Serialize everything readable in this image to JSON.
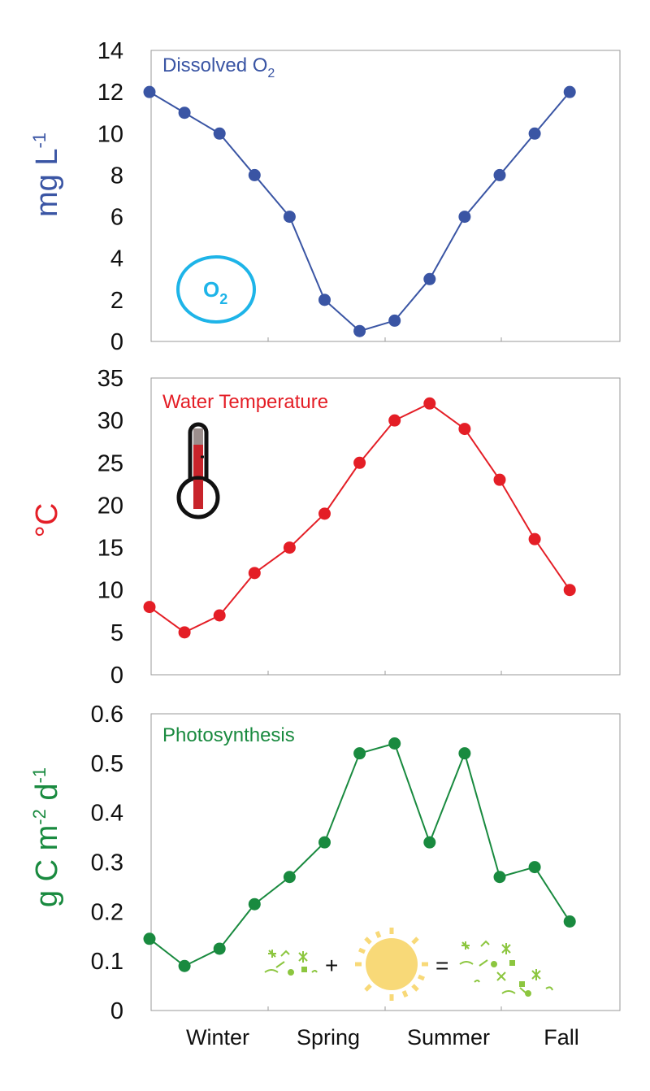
{
  "colors": {
    "oxygen": "#3a55a4",
    "temperature": "#e41e26",
    "photosynthesis": "#198a3f",
    "o2_icon": "#1eb4e8",
    "sun": "#f8d978",
    "algae": "#8cc63f"
  },
  "icons": [
    "o2-bubble-icon",
    "thermometer-icon",
    "algae-icon",
    "sun-icon"
  ],
  "o2_icon": {
    "base": "O",
    "sub": "2"
  },
  "equation": {
    "plus": "+",
    "equals": "="
  },
  "chart_data": [
    {
      "type": "line",
      "title": "Dissolved O",
      "title_sub": "2",
      "ylabel": "mg L",
      "ylabel_sup": "-1",
      "ylim": [
        0,
        14
      ],
      "yticks": [
        0,
        2,
        4,
        6,
        8,
        10,
        12,
        14
      ],
      "ytick_labels": [
        "0",
        "2",
        "4",
        "6",
        "8",
        "10",
        "12",
        "14"
      ],
      "series": [
        {
          "values": [
            12,
            11,
            10,
            8,
            6,
            2,
            0.5,
            1,
            3,
            6,
            8,
            10,
            12
          ]
        }
      ]
    },
    {
      "type": "line",
      "title": "Water Temperature",
      "ylabel": "°C",
      "ylim": [
        0,
        35
      ],
      "yticks": [
        0,
        5,
        10,
        15,
        20,
        25,
        30,
        35
      ],
      "ytick_labels": [
        "0",
        "5",
        "10",
        "15",
        "20",
        "25",
        "30",
        "35"
      ],
      "series": [
        {
          "values": [
            8,
            5,
            7,
            12,
            15,
            19,
            25,
            30,
            32,
            29,
            23,
            16,
            10
          ]
        }
      ]
    },
    {
      "type": "line",
      "title": "Photosynthesis",
      "ylabel": "g C m",
      "ylabel_sup1": "-2",
      "ylabel_mid": " d",
      "ylabel_sup2": "-1",
      "ylim": [
        0,
        0.6
      ],
      "yticks": [
        0,
        0.1,
        0.2,
        0.3,
        0.4,
        0.5,
        0.6
      ],
      "ytick_labels": [
        "0",
        "0.1",
        "0.2",
        "0.3",
        "0.4",
        "0.5",
        "0.6"
      ],
      "series": [
        {
          "values": [
            0.145,
            0.09,
            0.125,
            0.215,
            0.27,
            0.34,
            0.52,
            0.54,
            0.34,
            0.52,
            0.27,
            0.29,
            0.18
          ]
        }
      ]
    }
  ],
  "seasons": [
    "Winter",
    "Spring",
    "Summer",
    "Fall"
  ]
}
